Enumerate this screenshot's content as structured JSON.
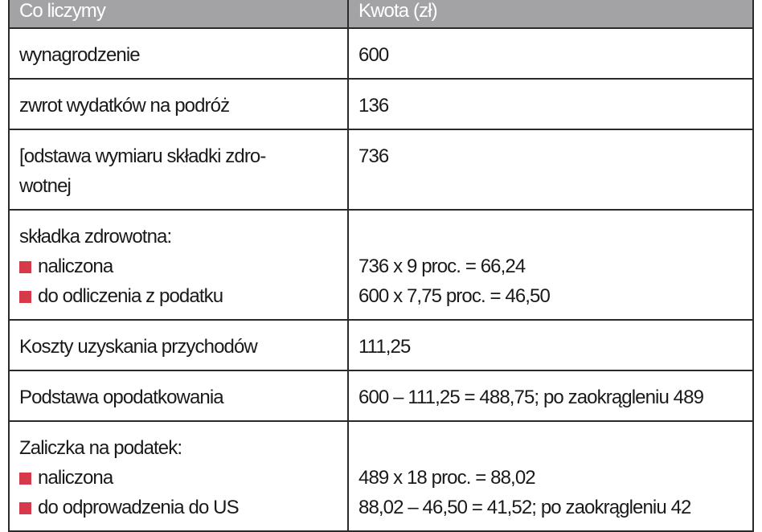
{
  "header": {
    "col1": "Co liczymy",
    "col2": "Kwota (zł)"
  },
  "rows": [
    {
      "label": "wynagrodzenie",
      "value": "600"
    },
    {
      "label": "zwrot wydatków na podróż",
      "value": "136"
    },
    {
      "label1": "[odstawa wymiaru składki zdro-",
      "label2": "wotnej",
      "value": "736"
    },
    {
      "label": "składka zdrowotna:",
      "items": [
        {
          "label": "naliczona",
          "value": "736 x 9 proc. = 66,24"
        },
        {
          "label": "do odliczenia z podatku",
          "value": "600 x 7,75 proc. = 46,50"
        }
      ]
    },
    {
      "label": "Koszty uzyskania przychodów",
      "value": "111,25"
    },
    {
      "label": "Podstawa opodatkowania",
      "value": "600 – 111,25 = 488,75; po zaokrągleniu 489"
    },
    {
      "label": "Zaliczka na podatek:",
      "items": [
        {
          "label": "naliczona",
          "value": "489 x 18 proc. = 88,02"
        },
        {
          "label": "do odprowadzenia do US",
          "value": "88,02 – 46,50 = 41,52; po zaokrągleniu 42"
        }
      ]
    }
  ],
  "colors": {
    "header_bg": "#a3a3a5",
    "bullet": "#d63a4a"
  }
}
